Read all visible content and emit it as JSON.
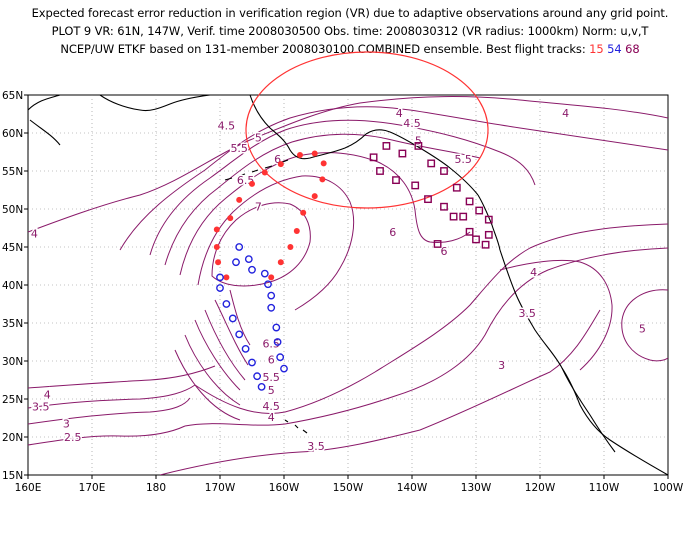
{
  "title_lines": {
    "line1": "Expected forecast error reduction in verification region (VR) due to adaptive observations around any grid point.",
    "line2": "PLOT 9 VR: 61N, 147W, Verif. time 2008030500 Obs. time: 2008030312 (VR radius: 1000km) Norm: u,v,T",
    "line3_prefix": "NCEP/UW ETKF based on 131-member 2008030100 COMBINED ensemble.  Best flight tracks:",
    "track_15": "15",
    "track_54": "54",
    "track_68": "68"
  },
  "axes": {
    "lon_labels": [
      "160E",
      "170E",
      "180",
      "170W",
      "160W",
      "150W",
      "140W",
      "130W",
      "120W",
      "110W",
      "100W"
    ],
    "lat_labels": [
      "15N",
      "20N",
      "25N",
      "30N",
      "35N",
      "40N",
      "45N",
      "50N",
      "55N",
      "60N",
      "65N"
    ]
  },
  "contour_labels": [
    {
      "text": "4",
      "lon": -142,
      "lat": 62.6
    },
    {
      "text": "4",
      "lon": -116,
      "lat": 62.6
    },
    {
      "text": "4.5",
      "lon": -169,
      "lat": 61.0
    },
    {
      "text": "4.5",
      "lon": -140,
      "lat": 61.3
    },
    {
      "text": "5",
      "lon": -164,
      "lat": 59.4
    },
    {
      "text": "5",
      "lon": -139,
      "lat": 59.0
    },
    {
      "text": "5.5",
      "lon": -167,
      "lat": 58.0
    },
    {
      "text": "5.5",
      "lon": -132,
      "lat": 56.6
    },
    {
      "text": "6",
      "lon": -161,
      "lat": 56.6
    },
    {
      "text": "6.5",
      "lon": -166,
      "lat": 53.8
    },
    {
      "text": "7",
      "lon": -164,
      "lat": 50.3
    },
    {
      "text": "4",
      "lon": 161,
      "lat": 46.8
    },
    {
      "text": "6",
      "lon": -143,
      "lat": 47.0
    },
    {
      "text": "6",
      "lon": -135,
      "lat": 44.5
    },
    {
      "text": "4",
      "lon": -121,
      "lat": 41.7
    },
    {
      "text": "3.5",
      "lon": -122,
      "lat": 36.3
    },
    {
      "text": "5",
      "lon": -104,
      "lat": 34.3
    },
    {
      "text": "6.5",
      "lon": -162,
      "lat": 32.3
    },
    {
      "text": "6",
      "lon": -162,
      "lat": 30.2
    },
    {
      "text": "5.5",
      "lon": -162,
      "lat": 27.9
    },
    {
      "text": "5",
      "lon": -162,
      "lat": 26.2
    },
    {
      "text": "4.5",
      "lon": -162,
      "lat": 24.1
    },
    {
      "text": "4",
      "lon": -162,
      "lat": 22.6
    },
    {
      "text": "4",
      "lon": 163,
      "lat": 25.6
    },
    {
      "text": "3.5",
      "lon": 162,
      "lat": 24.0
    },
    {
      "text": "3",
      "lon": 166,
      "lat": 21.8
    },
    {
      "text": "2.5",
      "lon": 167,
      "lat": 20.0
    },
    {
      "text": "3.5",
      "lon": -155,
      "lat": 18.8
    },
    {
      "text": "3",
      "lon": -126,
      "lat": 29.5
    }
  ],
  "tracks": [
    {
      "name": "15",
      "marker": "dot",
      "color": "#ff3333",
      "points": [
        [
          -170.5,
          47.3
        ],
        [
          -170.5,
          45.0
        ],
        [
          -170.3,
          43.0
        ],
        [
          -169.0,
          41.0
        ],
        [
          -168.4,
          48.8
        ],
        [
          -167.0,
          51.2
        ],
        [
          -165.0,
          53.3
        ],
        [
          -163.0,
          54.8
        ],
        [
          -160.5,
          55.9
        ],
        [
          -157.5,
          57.1
        ],
        [
          -155.2,
          57.3
        ],
        [
          -153.8,
          56.0
        ],
        [
          -154.0,
          53.9
        ],
        [
          -155.2,
          51.7
        ],
        [
          -157.0,
          49.5
        ],
        [
          -158.0,
          47.1
        ],
        [
          -159.0,
          45.0
        ],
        [
          -160.5,
          43.0
        ],
        [
          -162.0,
          41.0
        ]
      ]
    },
    {
      "name": "54",
      "marker": "circle",
      "color": "#2222dd",
      "points": [
        [
          -167.0,
          45.0
        ],
        [
          -165.5,
          43.4
        ],
        [
          -165.0,
          42.0
        ],
        [
          -167.5,
          43.0
        ],
        [
          -170.0,
          41.0
        ],
        [
          -170.0,
          39.6
        ],
        [
          -169.0,
          37.5
        ],
        [
          -168.0,
          35.6
        ],
        [
          -167.0,
          33.5
        ],
        [
          -166.0,
          31.6
        ],
        [
          -165.0,
          29.8
        ],
        [
          -164.2,
          28.0
        ],
        [
          -163.5,
          26.6
        ],
        [
          -160.0,
          29.0
        ],
        [
          -160.6,
          30.5
        ],
        [
          -161.0,
          32.5
        ],
        [
          -161.2,
          34.4
        ],
        [
          -162.0,
          37.0
        ],
        [
          -162.0,
          38.6
        ],
        [
          -162.5,
          40.1
        ],
        [
          -163.0,
          41.5
        ]
      ]
    },
    {
      "name": "68",
      "marker": "square",
      "color": "#880055",
      "points": [
        [
          -146.0,
          56.8
        ],
        [
          -144.0,
          58.3
        ],
        [
          -141.5,
          57.3
        ],
        [
          -139.0,
          58.3
        ],
        [
          -137.0,
          56.0
        ],
        [
          -135.0,
          55.0
        ],
        [
          -133.0,
          52.8
        ],
        [
          -131.0,
          51.0
        ],
        [
          -129.5,
          49.8
        ],
        [
          -128.0,
          48.6
        ],
        [
          -128.0,
          46.6
        ],
        [
          -128.5,
          45.3
        ],
        [
          -130.0,
          46.0
        ],
        [
          -131.0,
          47.0
        ],
        [
          -132.0,
          49.0
        ],
        [
          -133.5,
          49.0
        ],
        [
          -135.0,
          50.3
        ],
        [
          -137.5,
          51.3
        ],
        [
          -139.5,
          53.1
        ],
        [
          -142.5,
          53.8
        ],
        [
          -145.0,
          55.0
        ],
        [
          -136.0,
          45.4
        ]
      ]
    }
  ],
  "verification_region": {
    "center_lon": -147,
    "center_lat": 61,
    "radius_km": 1000,
    "color": "#ff3333"
  },
  "colors": {
    "contour": "#8a1a6a",
    "coast": "#000000",
    "grid": "#888888"
  }
}
